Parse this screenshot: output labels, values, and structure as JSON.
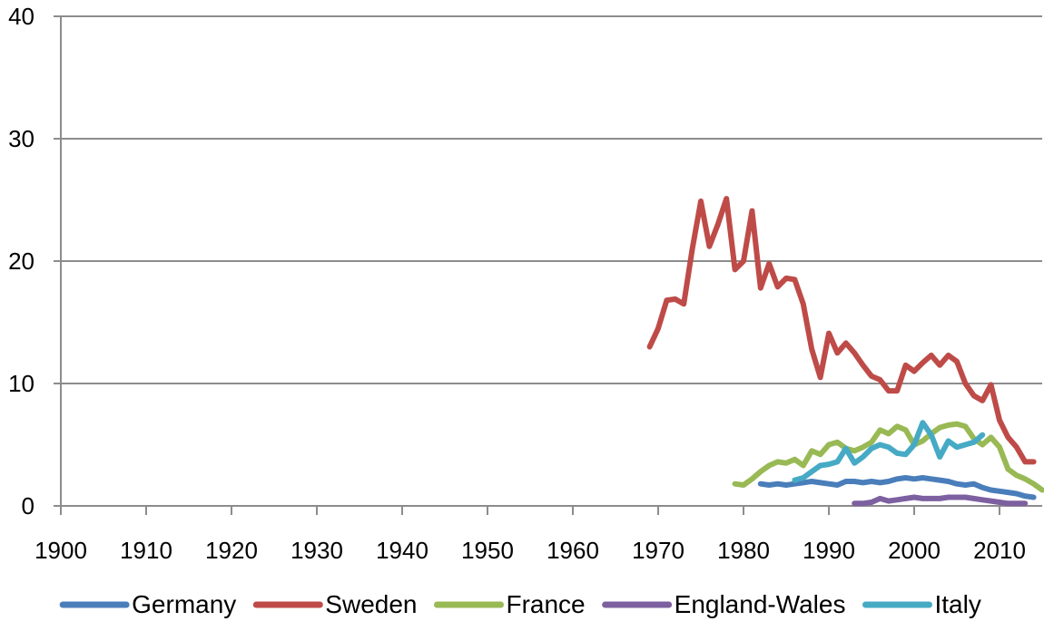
{
  "chart_data": {
    "type": "line",
    "title": "",
    "xlabel": "",
    "ylabel": "",
    "xlim": [
      1900,
      2015
    ],
    "ylim": [
      0,
      40
    ],
    "x_ticks": [
      1900,
      1910,
      1920,
      1930,
      1940,
      1950,
      1960,
      1970,
      1980,
      1990,
      2000,
      2010
    ],
    "y_ticks": [
      0,
      10,
      20,
      30,
      40
    ],
    "x_tick_labels": [
      "1900",
      "1910",
      "1920",
      "1930",
      "1940",
      "1950",
      "1960",
      "1970",
      "1980",
      "1990",
      "2000",
      "2010"
    ],
    "y_tick_labels": [
      "0",
      "10",
      "20",
      "30",
      "40"
    ],
    "grid": "horizontal",
    "legend_position": "bottom",
    "series": [
      {
        "name": "Germany",
        "color": "#4a7ebb",
        "points": [
          [
            1982,
            1.8
          ],
          [
            1983,
            1.7
          ],
          [
            1984,
            1.8
          ],
          [
            1985,
            1.7
          ],
          [
            1986,
            1.8
          ],
          [
            1987,
            1.9
          ],
          [
            1988,
            2.0
          ],
          [
            1989,
            1.9
          ],
          [
            1990,
            1.8
          ],
          [
            1991,
            1.7
          ],
          [
            1992,
            2.0
          ],
          [
            1993,
            2.0
          ],
          [
            1994,
            1.9
          ],
          [
            1995,
            2.0
          ],
          [
            1996,
            1.9
          ],
          [
            1997,
            2.0
          ],
          [
            1998,
            2.2
          ],
          [
            1999,
            2.3
          ],
          [
            2000,
            2.2
          ],
          [
            2001,
            2.3
          ],
          [
            2002,
            2.2
          ],
          [
            2003,
            2.1
          ],
          [
            2004,
            2.0
          ],
          [
            2005,
            1.8
          ],
          [
            2006,
            1.7
          ],
          [
            2007,
            1.8
          ],
          [
            2008,
            1.5
          ],
          [
            2009,
            1.3
          ],
          [
            2010,
            1.2
          ],
          [
            2011,
            1.1
          ],
          [
            2012,
            1.0
          ],
          [
            2013,
            0.8
          ],
          [
            2014,
            0.7
          ]
        ]
      },
      {
        "name": "Sweden",
        "color": "#be4b48",
        "points": [
          [
            1969,
            13.0
          ],
          [
            1970,
            14.5
          ],
          [
            1971,
            16.8
          ],
          [
            1972,
            16.9
          ],
          [
            1973,
            16.5
          ],
          [
            1974,
            21.0
          ],
          [
            1975,
            24.9
          ],
          [
            1976,
            21.2
          ],
          [
            1977,
            23.0
          ],
          [
            1978,
            25.1
          ],
          [
            1979,
            19.3
          ],
          [
            1980,
            20.0
          ],
          [
            1981,
            24.1
          ],
          [
            1982,
            17.8
          ],
          [
            1983,
            19.8
          ],
          [
            1984,
            17.9
          ],
          [
            1985,
            18.6
          ],
          [
            1986,
            18.5
          ],
          [
            1987,
            16.5
          ],
          [
            1988,
            12.8
          ],
          [
            1989,
            10.5
          ],
          [
            1990,
            14.1
          ],
          [
            1991,
            12.5
          ],
          [
            1992,
            13.3
          ],
          [
            1993,
            12.5
          ],
          [
            1994,
            11.5
          ],
          [
            1995,
            10.6
          ],
          [
            1996,
            10.3
          ],
          [
            1997,
            9.4
          ],
          [
            1998,
            9.4
          ],
          [
            1999,
            11.5
          ],
          [
            2000,
            11.0
          ],
          [
            2001,
            11.7
          ],
          [
            2002,
            12.3
          ],
          [
            2003,
            11.5
          ],
          [
            2004,
            12.3
          ],
          [
            2005,
            11.8
          ],
          [
            2006,
            10.0
          ],
          [
            2007,
            9.0
          ],
          [
            2008,
            8.6
          ],
          [
            2009,
            9.9
          ],
          [
            2010,
            7.0
          ],
          [
            2011,
            5.6
          ],
          [
            2012,
            4.8
          ],
          [
            2013,
            3.6
          ],
          [
            2014,
            3.6
          ]
        ]
      },
      {
        "name": "France",
        "color": "#98b954",
        "points": [
          [
            1979,
            1.8
          ],
          [
            1980,
            1.7
          ],
          [
            1981,
            2.2
          ],
          [
            1982,
            2.8
          ],
          [
            1983,
            3.3
          ],
          [
            1984,
            3.6
          ],
          [
            1985,
            3.5
          ],
          [
            1986,
            3.8
          ],
          [
            1987,
            3.3
          ],
          [
            1988,
            4.5
          ],
          [
            1989,
            4.2
          ],
          [
            1990,
            5.0
          ],
          [
            1991,
            5.2
          ],
          [
            1992,
            4.7
          ],
          [
            1993,
            4.5
          ],
          [
            1994,
            4.8
          ],
          [
            1995,
            5.2
          ],
          [
            1996,
            6.2
          ],
          [
            1997,
            5.9
          ],
          [
            1998,
            6.5
          ],
          [
            1999,
            6.2
          ],
          [
            2000,
            5.0
          ],
          [
            2001,
            5.3
          ],
          [
            2002,
            5.9
          ],
          [
            2003,
            6.4
          ],
          [
            2004,
            6.6
          ],
          [
            2005,
            6.7
          ],
          [
            2006,
            6.5
          ],
          [
            2007,
            5.5
          ],
          [
            2008,
            5.0
          ],
          [
            2009,
            5.6
          ],
          [
            2010,
            4.8
          ],
          [
            2011,
            3.0
          ],
          [
            2012,
            2.5
          ],
          [
            2013,
            2.2
          ],
          [
            2014,
            1.8
          ],
          [
            2015,
            1.3
          ]
        ]
      },
      {
        "name": "England-Wales",
        "color": "#7d60a0",
        "points": [
          [
            1993,
            0.2
          ],
          [
            1994,
            0.2
          ],
          [
            1995,
            0.3
          ],
          [
            1996,
            0.6
          ],
          [
            1997,
            0.4
          ],
          [
            1998,
            0.5
          ],
          [
            1999,
            0.6
          ],
          [
            2000,
            0.7
          ],
          [
            2001,
            0.6
          ],
          [
            2002,
            0.6
          ],
          [
            2003,
            0.6
          ],
          [
            2004,
            0.7
          ],
          [
            2005,
            0.7
          ],
          [
            2006,
            0.7
          ],
          [
            2007,
            0.6
          ],
          [
            2008,
            0.5
          ],
          [
            2009,
            0.4
          ],
          [
            2010,
            0.3
          ],
          [
            2011,
            0.2
          ],
          [
            2012,
            0.2
          ],
          [
            2013,
            0.2
          ]
        ]
      },
      {
        "name": "Italy",
        "color": "#46aac5",
        "points": [
          [
            1986,
            2.1
          ],
          [
            1987,
            2.3
          ],
          [
            1988,
            2.8
          ],
          [
            1989,
            3.3
          ],
          [
            1990,
            3.4
          ],
          [
            1991,
            3.6
          ],
          [
            1992,
            4.7
          ],
          [
            1993,
            3.5
          ],
          [
            1994,
            4.0
          ],
          [
            1995,
            4.7
          ],
          [
            1996,
            5.0
          ],
          [
            1997,
            4.8
          ],
          [
            1998,
            4.3
          ],
          [
            1999,
            4.2
          ],
          [
            2000,
            5.0
          ],
          [
            2001,
            6.8
          ],
          [
            2002,
            5.8
          ],
          [
            2003,
            4.0
          ],
          [
            2004,
            5.3
          ],
          [
            2005,
            4.8
          ],
          [
            2006,
            5.0
          ],
          [
            2007,
            5.2
          ],
          [
            2008,
            5.8
          ]
        ]
      }
    ]
  }
}
